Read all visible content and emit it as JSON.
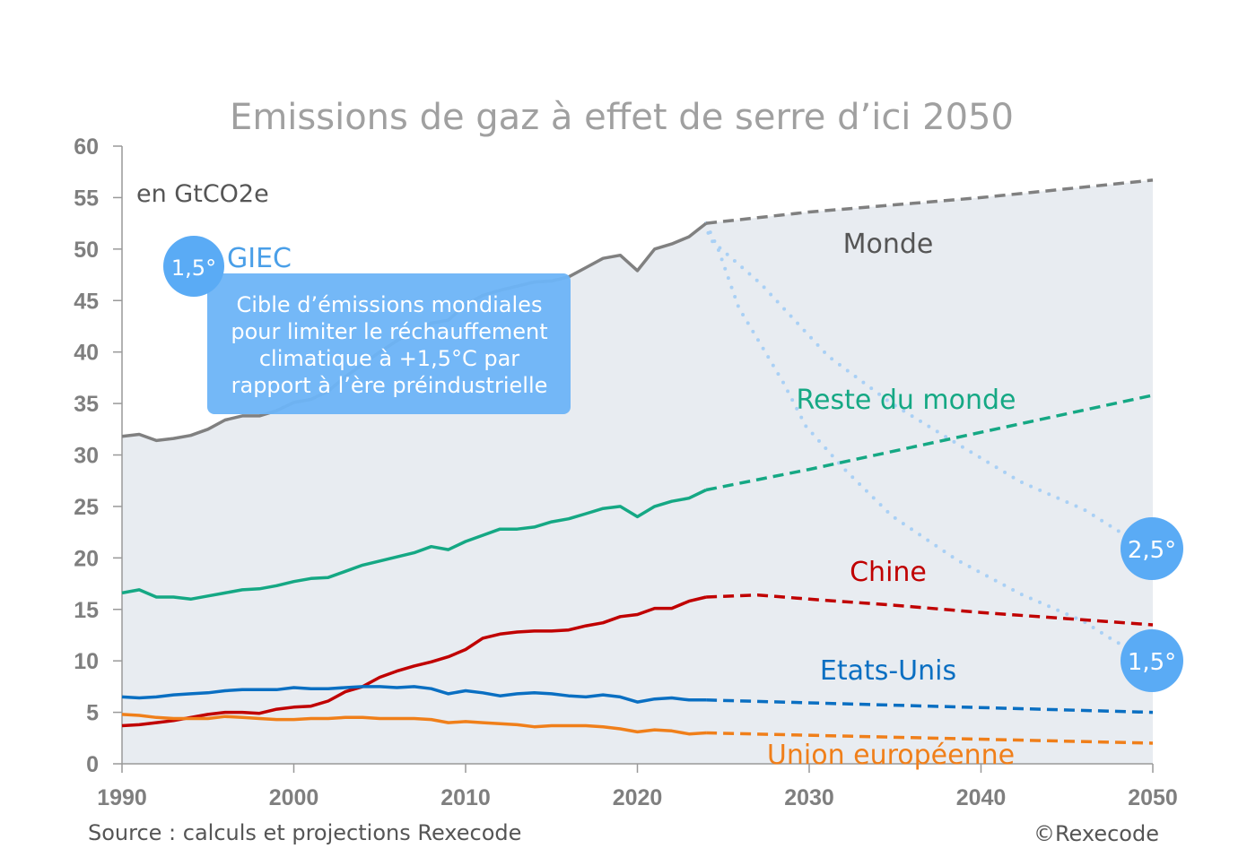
{
  "chart_data": {
    "type": "line",
    "title": "Emissions de gaz à effet de serre d’ici 2050",
    "unit_label": "en GtCO2e",
    "xlim": [
      1990,
      2050
    ],
    "ylim": [
      0,
      60
    ],
    "xticks": [
      "1990",
      "2000",
      "2010",
      "2020",
      "2030",
      "2040",
      "2050"
    ],
    "yticks": [
      "0",
      "5",
      "10",
      "15",
      "20",
      "25",
      "30",
      "35",
      "40",
      "45",
      "50",
      "55",
      "60"
    ],
    "grid": false,
    "legend": "direct labels",
    "historical_years": [
      1990,
      1991,
      1992,
      1993,
      1994,
      1995,
      1996,
      1997,
      1998,
      1999,
      2000,
      2001,
      2002,
      2003,
      2004,
      2005,
      2006,
      2007,
      2008,
      2009,
      2010,
      2011,
      2012,
      2013,
      2014,
      2015,
      2016,
      2017,
      2018,
      2019,
      2020,
      2021,
      2022,
      2023,
      2024
    ],
    "series": [
      {
        "name": "Monde",
        "color": "#808080",
        "values": [
          31.8,
          32.0,
          31.4,
          31.6,
          31.9,
          32.5,
          33.4,
          33.8,
          33.8,
          34.3,
          35.1,
          35.4,
          36.2,
          37.6,
          38.8,
          40.0,
          41.1,
          42.0,
          42.8,
          43.1,
          44.6,
          45.5,
          46.0,
          46.4,
          46.8,
          46.9,
          47.3,
          48.2,
          49.1,
          49.4,
          47.9,
          50.0,
          50.5,
          51.2,
          52.5
        ],
        "projection": {
          "x": [
            2024,
            2030,
            2040,
            2050
          ],
          "y": [
            52.5,
            53.6,
            55.0,
            56.7
          ]
        }
      },
      {
        "name": "Reste du monde",
        "color": "#15a884",
        "values": [
          16.6,
          16.9,
          16.2,
          16.2,
          16.0,
          16.3,
          16.6,
          16.9,
          17.0,
          17.3,
          17.7,
          18.0,
          18.1,
          18.7,
          19.3,
          19.7,
          20.1,
          20.5,
          21.1,
          20.8,
          21.6,
          22.2,
          22.8,
          22.8,
          23.0,
          23.5,
          23.8,
          24.3,
          24.8,
          25.0,
          24.0,
          25.0,
          25.5,
          25.8,
          26.6
        ],
        "projection": {
          "x": [
            2024,
            2030,
            2040,
            2050
          ],
          "y": [
            26.6,
            28.6,
            32.2,
            35.8
          ]
        }
      },
      {
        "name": "Chine",
        "color": "#c00000",
        "values": [
          3.7,
          3.8,
          4.0,
          4.2,
          4.5,
          4.8,
          5.0,
          5.0,
          4.9,
          5.3,
          5.5,
          5.6,
          6.1,
          7.0,
          7.5,
          8.4,
          9.0,
          9.5,
          9.9,
          10.4,
          11.1,
          12.2,
          12.6,
          12.8,
          12.9,
          12.9,
          13.0,
          13.4,
          13.7,
          14.3,
          14.5,
          15.1,
          15.1,
          15.8,
          16.2
        ],
        "projection": {
          "x": [
            2024,
            2027,
            2030,
            2035,
            2040,
            2045,
            2050
          ],
          "y": [
            16.2,
            16.4,
            16.0,
            15.4,
            14.7,
            14.1,
            13.5
          ]
        }
      },
      {
        "name": "Etats-Unis",
        "color": "#0a6fc2",
        "values": [
          6.5,
          6.4,
          6.5,
          6.7,
          6.8,
          6.9,
          7.1,
          7.2,
          7.2,
          7.2,
          7.4,
          7.3,
          7.3,
          7.4,
          7.5,
          7.5,
          7.4,
          7.5,
          7.3,
          6.8,
          7.1,
          6.9,
          6.6,
          6.8,
          6.9,
          6.8,
          6.6,
          6.5,
          6.7,
          6.5,
          6.0,
          6.3,
          6.4,
          6.2,
          6.2
        ],
        "projection": {
          "x": [
            2024,
            2050
          ],
          "y": [
            6.2,
            5.0
          ]
        }
      },
      {
        "name": "Union européenne",
        "color": "#f07f1a",
        "values": [
          4.8,
          4.7,
          4.5,
          4.4,
          4.4,
          4.4,
          4.6,
          4.5,
          4.4,
          4.3,
          4.3,
          4.4,
          4.4,
          4.5,
          4.5,
          4.4,
          4.4,
          4.4,
          4.3,
          4.0,
          4.1,
          4.0,
          3.9,
          3.8,
          3.6,
          3.7,
          3.7,
          3.7,
          3.6,
          3.4,
          3.1,
          3.3,
          3.2,
          2.9,
          3.0
        ],
        "projection": {
          "x": [
            2024,
            2050
          ],
          "y": [
            3.0,
            2.0
          ]
        }
      }
    ],
    "scenarios": [
      {
        "name": "2,5°",
        "color": "#a9d0f5",
        "x": [
          2024,
          2024.2,
          2027.2,
          2031.1,
          2034.8,
          2038.6,
          2042.3,
          2046,
          2048.1,
          2050
        ],
        "y": [
          52.5,
          51.0,
          46.6,
          39.6,
          35.0,
          31.1,
          27.4,
          24.7,
          22.5,
          21.5
        ]
      },
      {
        "name": "1,5°",
        "color": "#a9d0f5",
        "x": [
          2024,
          2024.7,
          2025.9,
          2027.3,
          2028.5,
          2029.8,
          2032,
          2034.8,
          2038.6,
          2042.3,
          2046,
          2047.9,
          2050
        ],
        "y": [
          52.5,
          50.0,
          44.3,
          40.4,
          37.0,
          32.8,
          28.7,
          24.1,
          19.8,
          16.5,
          13.8,
          11.8,
          10.5
        ]
      }
    ],
    "annotations": {
      "giec_badge": "1,5°",
      "giec_label": "GIEC",
      "giec_box_lines": [
        "Cible d’émissions mondiales",
        "pour limiter le réchauffement",
        "climatique à +1,5°C par",
        "rapport à l’ère préindustrielle"
      ],
      "area_color": "#e8ecf1",
      "badge_color": "#5aabf5"
    },
    "source": "Source : calculs et projections Rexecode",
    "copyright": "©Rexecode"
  }
}
